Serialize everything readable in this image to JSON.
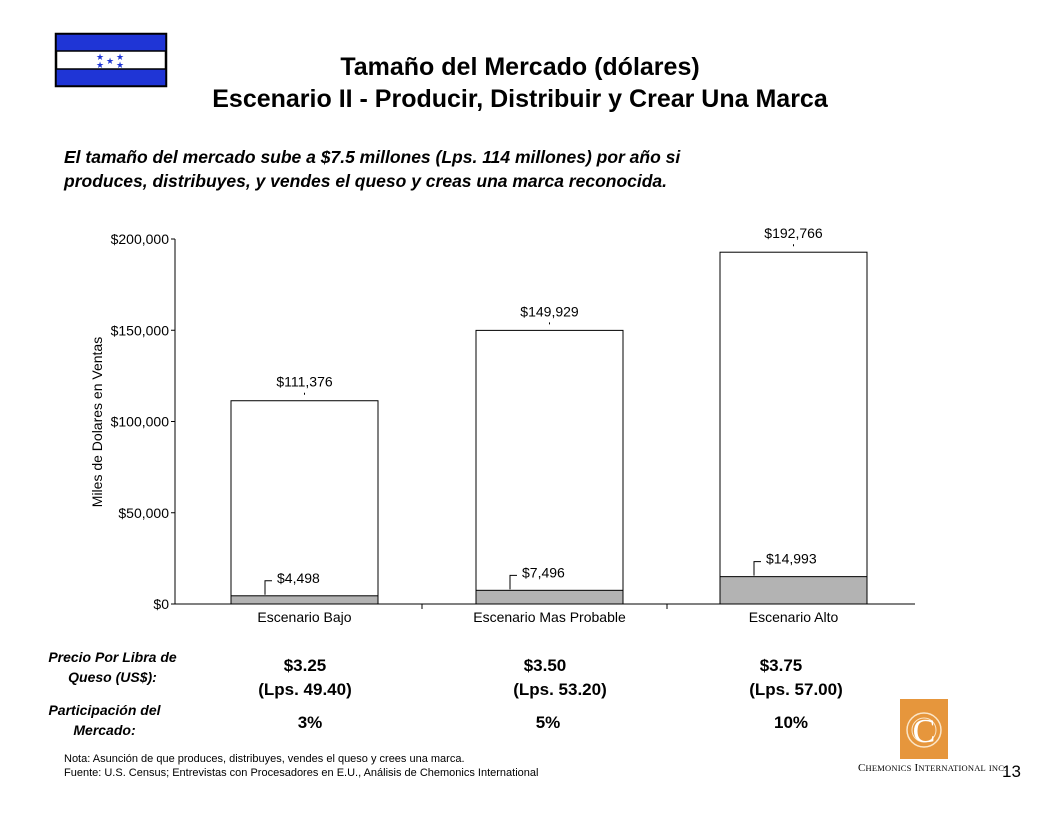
{
  "header": {
    "title_line1": "Tamaño del Mercado (dólares)",
    "title_line2": "Escenario II - Producir, Distribuir y Crear Una Marca",
    "subtitle_line1": "El tamaño del mercado sube a $7.5 millones (Lps. 114 millones) por año si",
    "subtitle_line2": "produces, distribuyes, y vendes el queso y creas una marca reconocida."
  },
  "colors": {
    "bar_total_fill": "#ffffff",
    "bar_segment_fill": "#b3b3b3",
    "flag_blue": "#1f35d6",
    "logo_orange": "#e6963c"
  },
  "chart_data": {
    "type": "bar",
    "ylabel": "Miles de Dolares en Ventas",
    "ylim": [
      0,
      200000
    ],
    "yticks": [
      0,
      50000,
      100000,
      150000,
      200000
    ],
    "ytick_labels": [
      "$0",
      "$50,000",
      "$100,000",
      "$150,000",
      "$200,000"
    ],
    "categories": [
      "Escenario Bajo",
      "Escenario Mas Probable",
      "Escenario Alto"
    ],
    "series": [
      {
        "values": [
          111376,
          149929,
          192766
        ],
        "labels": [
          "$111,376",
          "$149,929",
          "$192,766"
        ]
      },
      {
        "values": [
          4498,
          7496,
          14993
        ],
        "labels": [
          "$4,498",
          "$7,496",
          "$14,993"
        ]
      }
    ],
    "grid": false
  },
  "table": {
    "price_label_line1": "Precio Por Libra de",
    "price_label_line2": "Queso (US$):",
    "share_label_line1": "Participación del",
    "share_label_line2": "Mercado:",
    "prices_usd": [
      "$3.25",
      "$3.50",
      "$3.75"
    ],
    "prices_lps": [
      "(Lps. 49.40)",
      "(Lps. 53.20)",
      "(Lps. 57.00)"
    ],
    "shares": [
      "3%",
      "5%",
      "10%"
    ]
  },
  "footer": {
    "note": "Nota: Asunción de que produces, distribuyes, vendes el queso y crees una marca.",
    "source": "Fuente: U.S. Census; Entrevistas con Procesadores en E.U., Análisis de Chemonics International",
    "company_c": "C",
    "company_hemonics": "HEMONICS",
    "company_i": "I",
    "company_nternational": "NTERNATIONAL",
    "company_inc": "INC.",
    "page_number": "13"
  }
}
